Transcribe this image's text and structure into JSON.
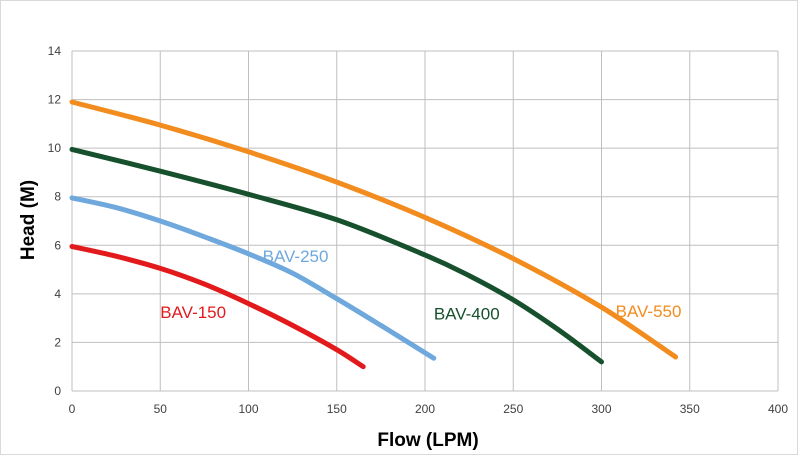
{
  "chart_data": {
    "type": "line",
    "title": "",
    "xlabel": "Flow (LPM)",
    "ylabel": "Head (M)",
    "xlim": [
      0,
      400
    ],
    "ylim": [
      0,
      14
    ],
    "x_ticks": [
      "0",
      "50",
      "100",
      "150",
      "200",
      "250",
      "300",
      "350",
      "400"
    ],
    "y_ticks": [
      "0",
      "2",
      "4",
      "6",
      "8",
      "10",
      "12",
      "14"
    ],
    "grid": true,
    "legend": "none",
    "series": [
      {
        "name": "BAV-150",
        "color": "#e31a1c",
        "points": [
          [
            0,
            5.95
          ],
          [
            25,
            5.55
          ],
          [
            50,
            5.05
          ],
          [
            75,
            4.4
          ],
          [
            100,
            3.6
          ],
          [
            125,
            2.7
          ],
          [
            150,
            1.7
          ],
          [
            165,
            1.0
          ]
        ]
      },
      {
        "name": "BAV-250",
        "color": "#6fa8dc",
        "points": [
          [
            0,
            7.95
          ],
          [
            25,
            7.55
          ],
          [
            50,
            7.0
          ],
          [
            75,
            6.35
          ],
          [
            100,
            5.65
          ],
          [
            125,
            4.85
          ],
          [
            150,
            3.8
          ],
          [
            175,
            2.7
          ],
          [
            205,
            1.35
          ]
        ]
      },
      {
        "name": "BAV-400",
        "color": "#17502d",
        "points": [
          [
            0,
            9.95
          ],
          [
            50,
            9.05
          ],
          [
            100,
            8.1
          ],
          [
            150,
            7.05
          ],
          [
            200,
            5.6
          ],
          [
            225,
            4.75
          ],
          [
            250,
            3.75
          ],
          [
            275,
            2.55
          ],
          [
            300,
            1.2
          ]
        ]
      },
      {
        "name": "BAV-550",
        "color": "#f28c1e",
        "points": [
          [
            0,
            11.9
          ],
          [
            50,
            10.95
          ],
          [
            100,
            9.85
          ],
          [
            150,
            8.6
          ],
          [
            200,
            7.15
          ],
          [
            250,
            5.45
          ],
          [
            300,
            3.45
          ],
          [
            342,
            1.4
          ]
        ]
      }
    ]
  }
}
